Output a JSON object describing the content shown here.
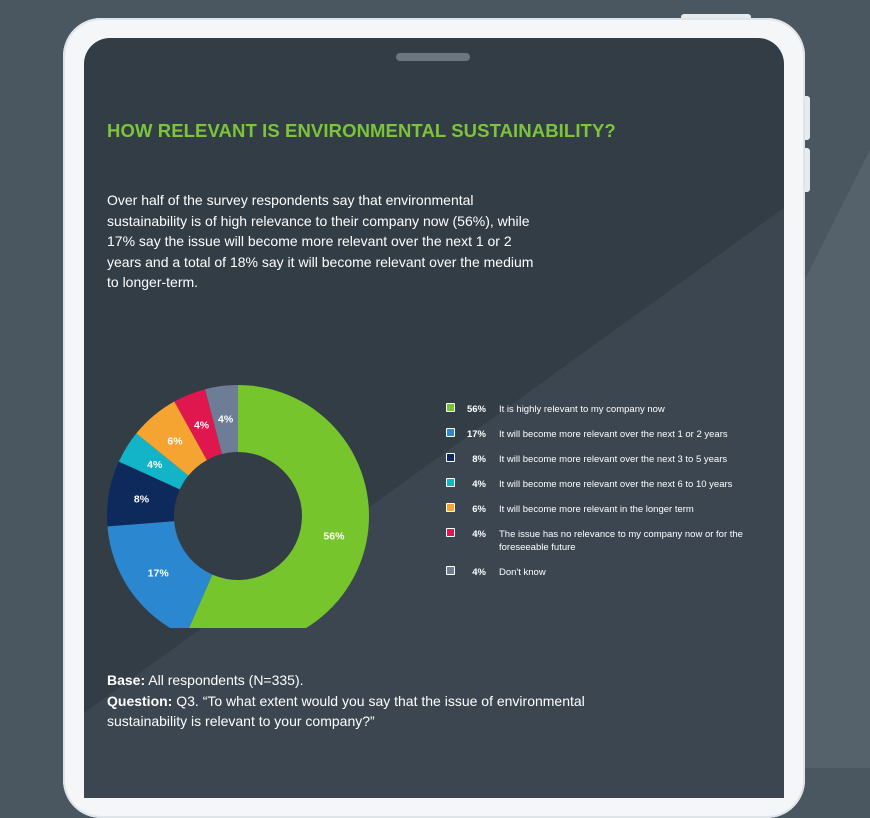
{
  "title": "HOW RELEVANT IS ENVIRONMENTAL SUSTAINABILITY?",
  "intro": "Over half of the survey respondents say that environmental sustainability is of high relevance to their company now (56%), while 17% say the issue will become more relevant over the next 1 or 2 years and a total of 18% say it will become relevant over the medium to longer-term.",
  "chart_data": {
    "type": "pie",
    "donut": true,
    "slices": [
      {
        "label": "It is highly relevant to my company now",
        "value": 56,
        "pct_label": "56%",
        "color": "#76c52d"
      },
      {
        "label": "It will become more relevant over the next 1 or 2 years",
        "value": 17,
        "pct_label": "17%",
        "color": "#2a87d0"
      },
      {
        "label": "It will become more relevant over the next 3 to 5 years",
        "value": 8,
        "pct_label": "8%",
        "color": "#0e2a5c"
      },
      {
        "label": "It will become more relevant over the next 6 to 10 years",
        "value": 4,
        "pct_label": "4%",
        "color": "#13b3c8"
      },
      {
        "label": "It will become more relevant in the longer term",
        "value": 6,
        "pct_label": "6%",
        "color": "#f5a331"
      },
      {
        "label": "The issue has no relevance to my company now or for the foreseeable future",
        "value": 4,
        "pct_label": "4%",
        "color": "#e0164e"
      },
      {
        "label": "Don't know",
        "value": 4,
        "pct_label": "4%",
        "color": "#6d7d96"
      }
    ],
    "legend_position": "right"
  },
  "footer": {
    "base_label": "Base:",
    "base_text": " All respondents (N=335).",
    "question_label": "Question:",
    "question_text": " Q3. “To what extent would you say that the issue of environmental sustainability is relevant to your company?”"
  },
  "colors": {
    "background": "#4a5660",
    "tablet_frame": "#f4f6f8",
    "screen": "#333d45",
    "accent_green": "#7cc53a"
  }
}
